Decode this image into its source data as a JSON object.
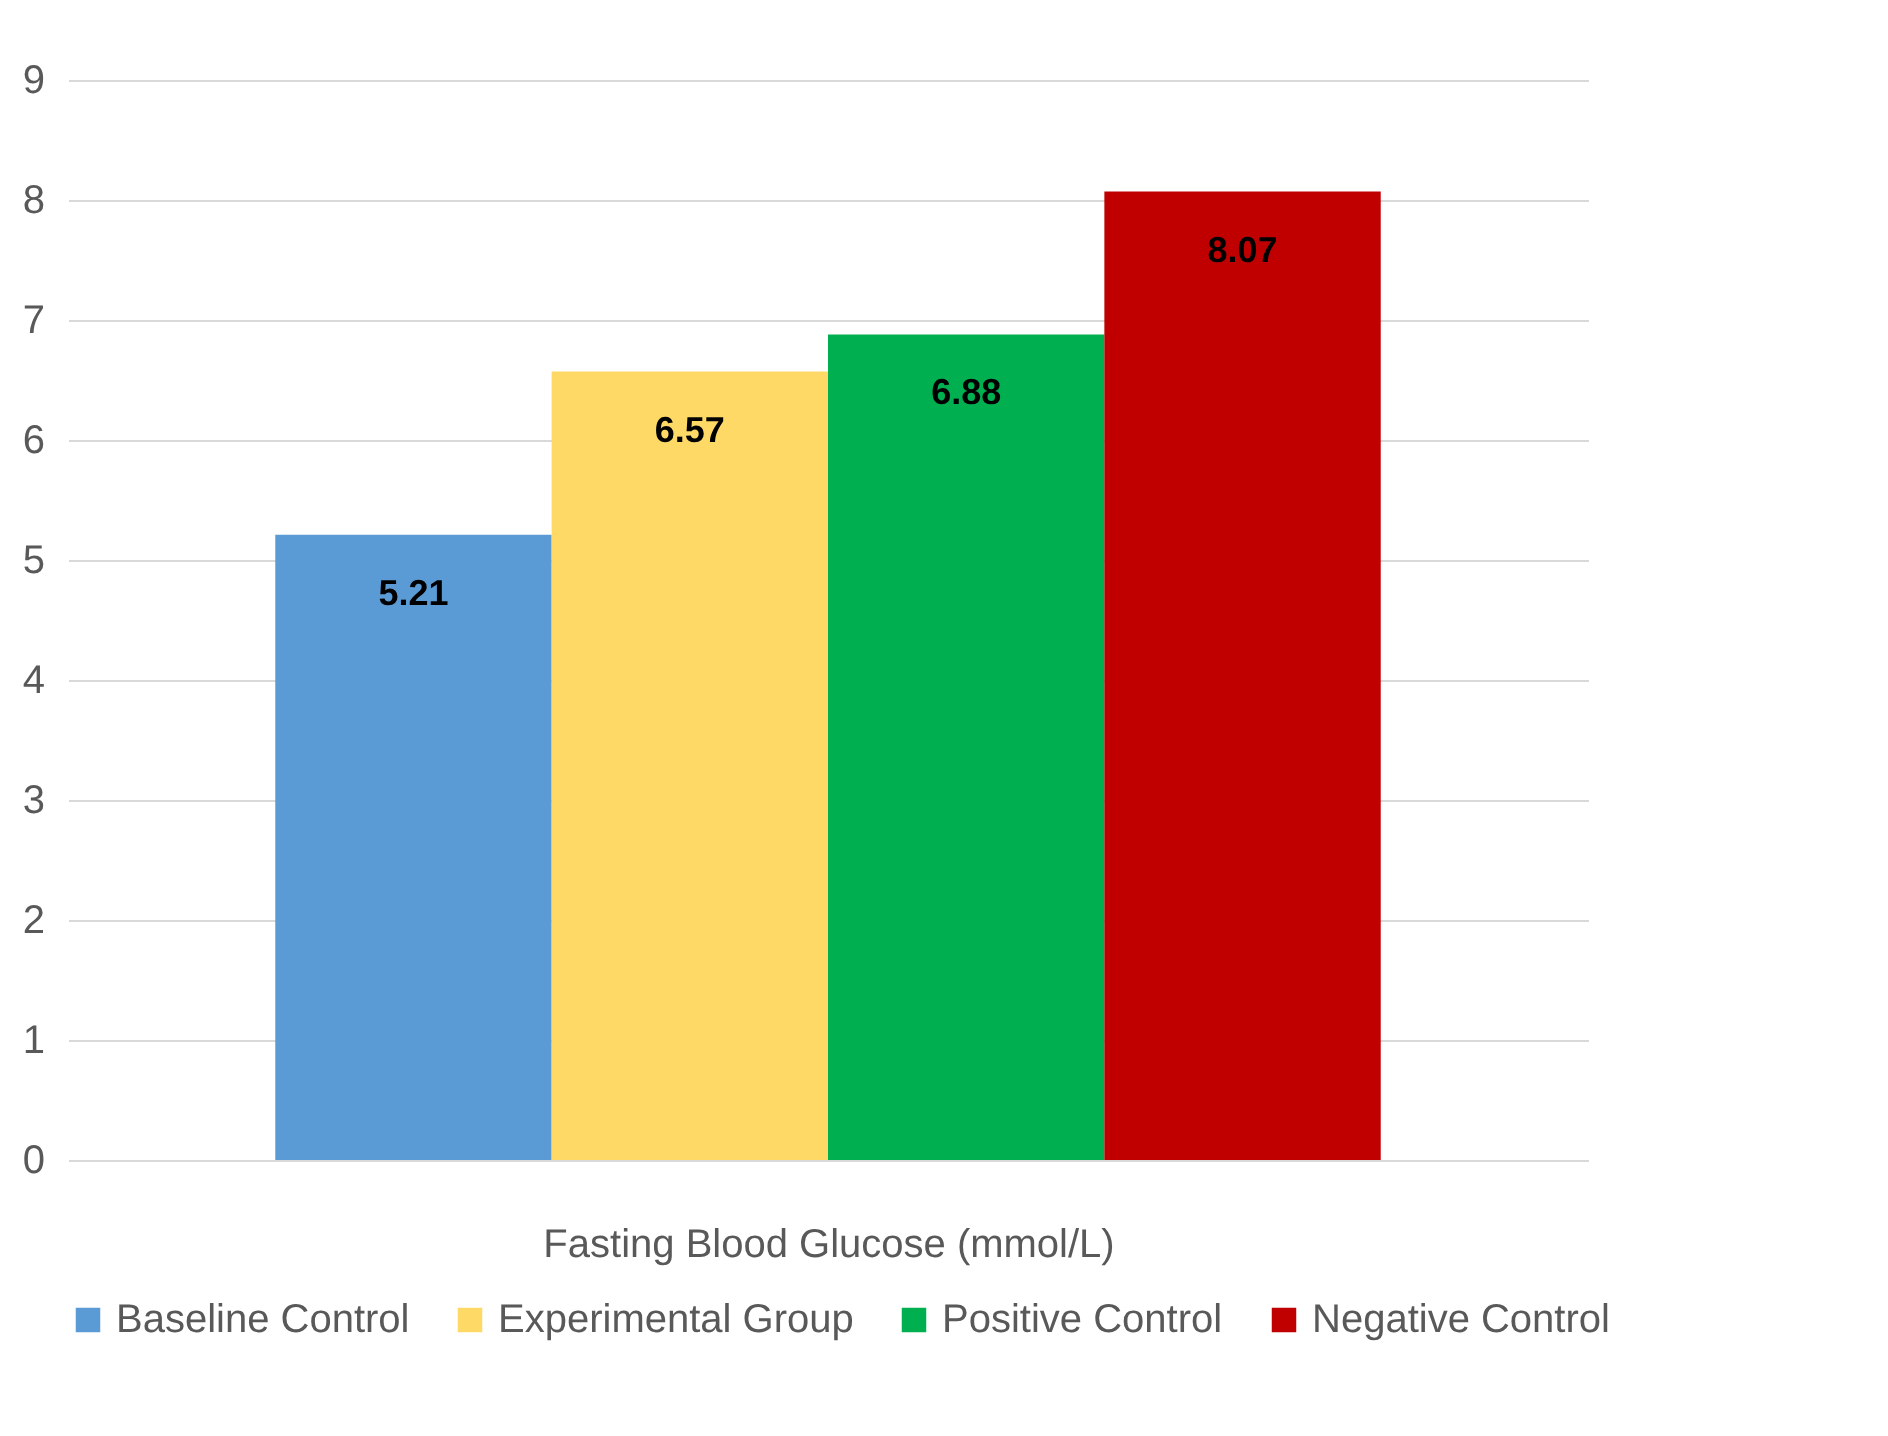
{
  "chart_data": {
    "type": "bar",
    "xlabel": "Fasting Blood Glucose (mmol/L)",
    "categories": [
      null
    ],
    "series": [
      {
        "name": "Baseline Control",
        "color": "#5b9bd5",
        "values": [
          5.21
        ]
      },
      {
        "name": "Experimental Group",
        "color": "#ffd966",
        "values": [
          6.57
        ]
      },
      {
        "name": "Positive Control",
        "color": "#00b050",
        "values": [
          6.88
        ]
      },
      {
        "name": "Negative Control",
        "color": "#c00000",
        "values": [
          8.07
        ]
      }
    ],
    "ylim": [
      0,
      9
    ],
    "yticks": [
      0,
      1,
      2,
      3,
      4,
      5,
      6,
      7,
      8,
      9
    ],
    "grid": true,
    "legend": "bottom",
    "data_labels": true
  }
}
